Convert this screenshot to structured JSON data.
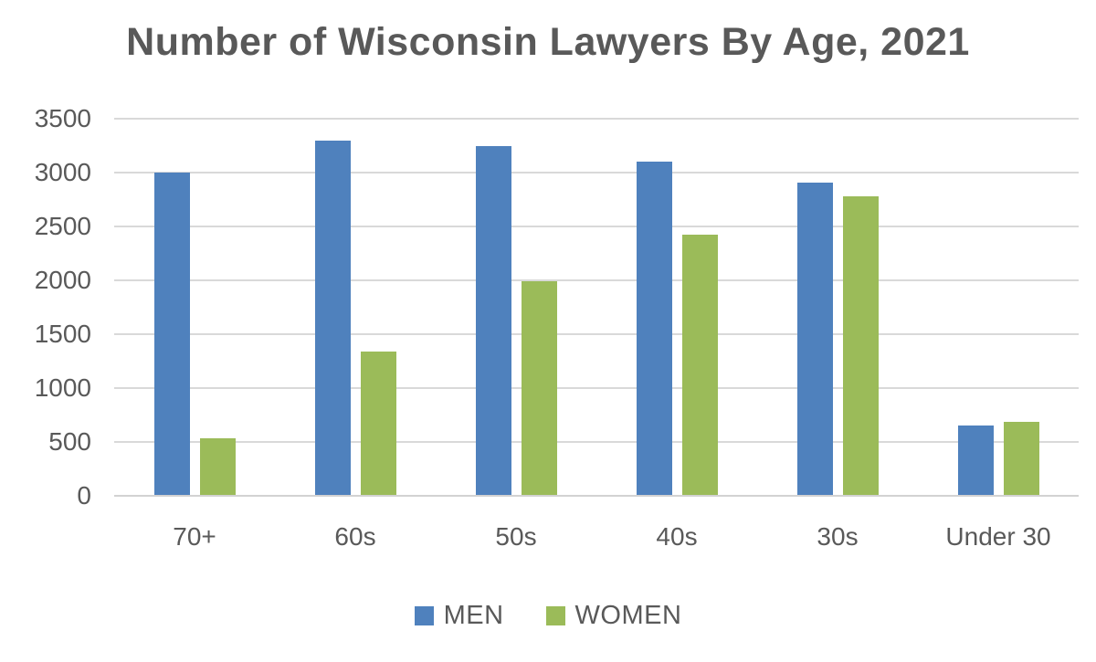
{
  "chart_data": {
    "type": "bar",
    "title": "Number of Wisconsin Lawyers By Age, 2021",
    "categories": [
      "70+",
      "60s",
      "50s",
      "40s",
      "30s",
      "Under 30"
    ],
    "series": [
      {
        "name": "MEN",
        "color": "#4F81BD",
        "values": [
          3000,
          3300,
          3250,
          3100,
          2910,
          650
        ]
      },
      {
        "name": "WOMEN",
        "color": "#9BBB59",
        "values": [
          530,
          1340,
          1990,
          2420,
          2780,
          690
        ]
      }
    ],
    "xlabel": "",
    "ylabel": "",
    "ylim": [
      0,
      3500
    ],
    "ytick_step": 500,
    "ytick_labels": [
      "0",
      "500",
      "1000",
      "1500",
      "2000",
      "2500",
      "3000",
      "3500"
    ],
    "grid": true,
    "legend_position": "bottom"
  },
  "colors": {
    "title_text": "#595959",
    "axis_text": "#595959",
    "gridline": "#D9D9D9",
    "background": "#FFFFFF",
    "men_bar": "#4F81BD",
    "women_bar": "#9BBB59"
  }
}
